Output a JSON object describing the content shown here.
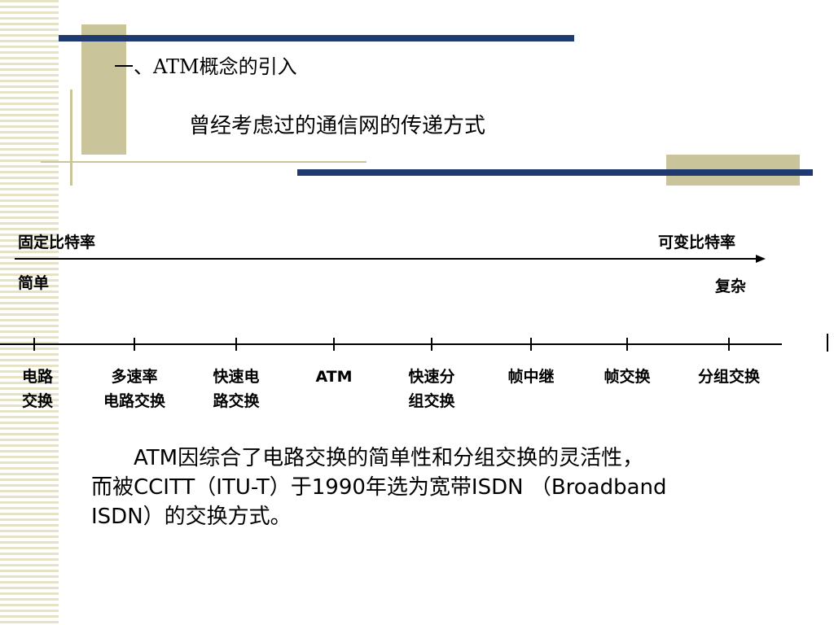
{
  "header": {
    "title": "一、ATM概念的引入",
    "subtitle": "曾经考虑过的通信网的传递方式"
  },
  "diagram": {
    "left_top": "固定比特率",
    "right_top": "可变比特率",
    "left_bottom": "简单",
    "right_bottom": "复杂",
    "items": [
      [
        "电路",
        "交换"
      ],
      [
        "多速率",
        "电路交换"
      ],
      [
        "快速电",
        "路交换"
      ],
      [
        "ATM"
      ],
      [
        "快速分",
        "组交换"
      ],
      [
        "帧中继"
      ],
      [
        "帧交换"
      ],
      [
        "分组交换"
      ]
    ]
  },
  "body": {
    "lines": [
      "ATM因综合了电路交换的简单性和分组交换的灵活性，",
      "而被CCITT（ITU-T）于1990年选为宽带ISDN （Broadband",
      "ISDN）的交换方式。"
    ]
  }
}
